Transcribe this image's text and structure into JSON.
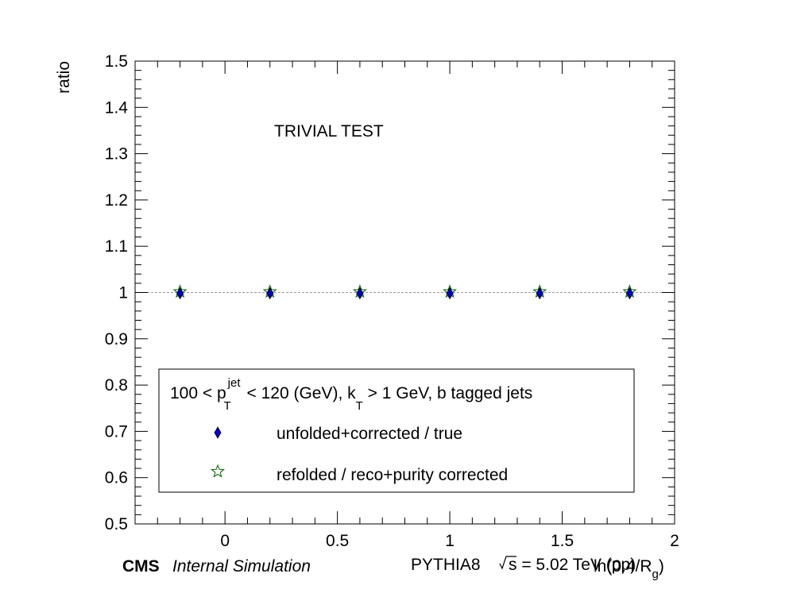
{
  "chart_data": {
    "type": "scatter",
    "title": "",
    "annotation": "TRIVIAL TEST",
    "xlabel": "ln(0.4/R",
    "xlabel_sub": "g",
    "xlabel_close": ")",
    "ylabel": "ratio",
    "xlim": [
      -0.4,
      2.0
    ],
    "ylim": [
      0.5,
      1.5
    ],
    "x_ticks": [
      0,
      0.5,
      1,
      1.5,
      2
    ],
    "x_tick_labels": [
      "0",
      "0.5",
      "1",
      "1.5",
      "2"
    ],
    "y_ticks": [
      0.5,
      0.6,
      0.7,
      0.8,
      0.9,
      1.0,
      1.1,
      1.2,
      1.3,
      1.4,
      1.5
    ],
    "y_tick_labels": [
      "0.5",
      "0.6",
      "0.7",
      "0.8",
      "0.9",
      "1",
      "1.1",
      "1.2",
      "1.3",
      "1.4",
      "1.5"
    ],
    "reference_line_y": 1.0,
    "series": [
      {
        "name": "unfolded+corrected / true",
        "marker": "diamond",
        "color": "#0000cc",
        "x": [
          -0.2,
          0.2,
          0.6,
          1.0,
          1.4,
          1.8
        ],
        "y": [
          1.0,
          1.0,
          1.0,
          1.0,
          1.0,
          1.0
        ]
      },
      {
        "name": "refolded / reco+purity corrected",
        "marker": "open-star",
        "color": "#006600",
        "x": [
          -0.2,
          0.2,
          0.6,
          1.0,
          1.4,
          1.8
        ],
        "y": [
          1.0,
          1.0,
          1.0,
          1.0,
          1.0,
          1.0
        ]
      }
    ],
    "legend": {
      "placement": "bottom",
      "header_parts": [
        "100 < p",
        "jet",
        "T",
        " < 120 (GeV), k",
        "T",
        " > 1 GeV, b tagged jets"
      ]
    }
  },
  "footer": {
    "cms": "CMS",
    "sim": "Internal Simulation",
    "energy_prefix": "PYTHIA8",
    "sqrt_s": "s",
    "energy_value": " = 5.02 TeV (pp)"
  }
}
